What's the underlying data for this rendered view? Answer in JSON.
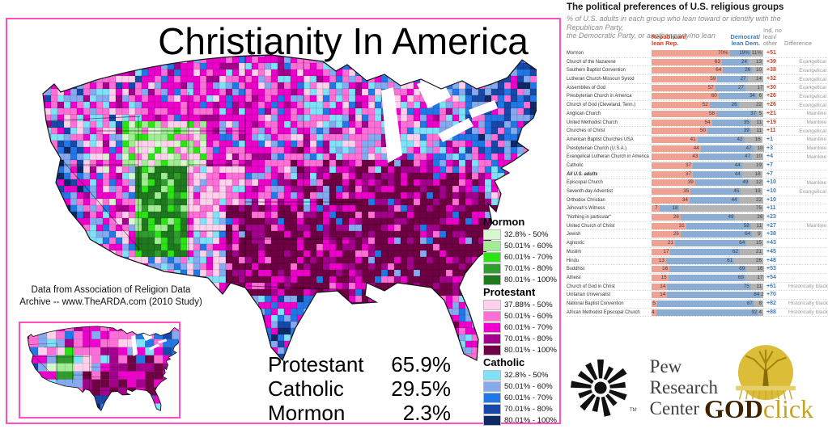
{
  "map_panel": {
    "title": "Christianity In America",
    "attribution_line1": "Data from Association of Religion Data",
    "attribution_line2": "Archive -- www.TheARDA.com (2010 Study)",
    "stats": [
      {
        "label": "Protestant",
        "value": "65.9%"
      },
      {
        "label": "Catholic",
        "value": "29.5%"
      },
      {
        "label": "Mormon",
        "value": "2.3%"
      }
    ],
    "legend": [
      {
        "group": "Mormon",
        "colors": [
          "#d7f7cf",
          "#a1ed93",
          "#2ce314",
          "#2f9e2f",
          "#1f7a1f"
        ],
        "ranges": [
          "32.8% - 50%",
          "50.01% - 60%",
          "60.01% - 70%",
          "70.01% - 80%",
          "80.01% - 100%"
        ]
      },
      {
        "group": "Protestant",
        "colors": [
          "#ffd1ec",
          "#ff6fd8",
          "#ee00cc",
          "#a4008e",
          "#6e0043"
        ],
        "ranges": [
          "37.88% - 50%",
          "50.01% - 60%",
          "60.01% - 70%",
          "70.01% - 80%",
          "80.01% - 100%"
        ]
      },
      {
        "group": "Catholic",
        "colors": [
          "#7fe2f9",
          "#85aaf0",
          "#2277e8",
          "#1747a8",
          "#0d2a66"
        ],
        "ranges": [
          "32.8% - 50%",
          "50.01% - 60%",
          "60.01% - 70%",
          "70.01% - 80%",
          "80.01% - 100%"
        ]
      }
    ],
    "border_color": "#ff4fc0"
  },
  "map_palette": {
    "ltpink": "#ffd1ec",
    "pink": "#ff6fd8",
    "magenta": "#ee00cc",
    "purple": "#a4008e",
    "maroon": "#6e0043",
    "cyan": "#7fe2f9",
    "ltblue": "#85aaf0",
    "blue": "#2277e8",
    "dkblue": "#1747a8",
    "navy": "#0d2a66",
    "palegreen": "#d7f7cf",
    "ltgreen": "#a1ed93",
    "green": "#2ce314",
    "midgreen": "#2f9e2f",
    "dkgreen": "#1f7a1f"
  },
  "chart_data": {
    "type": "bar",
    "title": "The political preferences of U.S. religious groups",
    "subtitle": "% of U.S. adults in each group who lean toward or identify with the Republican Party,\nthe Democratic Party, or another party/no lean",
    "headers": {
      "rep": "Republican/\nlean Rep.",
      "dem": "Democrat/\nlean Dem.",
      "ind": "Ind, no\nlean/\nother",
      "diff": "Difference"
    },
    "bar_colors": {
      "rep": "#f0a292",
      "dem": "#8badd3",
      "ind": "#b3b3b3"
    },
    "diff_colors": {
      "rep": "#c2452a",
      "dem": "#3b7cba"
    },
    "rows": [
      {
        "name": "Mormon",
        "rep": 70,
        "dem": 19,
        "ind": 11,
        "diff": "+51",
        "adv": "rep",
        "trad": "",
        "pct": true,
        "bold": false
      },
      {
        "name": "Church of the Nazarene",
        "rep": 63,
        "dem": 24,
        "ind": 13,
        "diff": "+39",
        "adv": "rep",
        "trad": "Evangelical",
        "pct": false,
        "bold": false
      },
      {
        "name": "Southern Baptist Convention",
        "rep": 64,
        "dem": 26,
        "ind": 10,
        "diff": "+38",
        "adv": "rep",
        "trad": "Evangelical",
        "pct": false,
        "bold": false
      },
      {
        "name": "Lutheran Church-Missouri Synod",
        "rep": 59,
        "dem": 27,
        "ind": 14,
        "diff": "+32",
        "adv": "rep",
        "trad": "Evangelical",
        "pct": false,
        "bold": false
      },
      {
        "name": "Assemblies of God",
        "rep": 57,
        "dem": 27,
        "ind": 17,
        "diff": "+30",
        "adv": "rep",
        "trad": "Evangelical",
        "pct": false,
        "bold": false
      },
      {
        "name": "Presbyterian Church in America",
        "rep": 60,
        "dem": 34,
        "ind": 6,
        "diff": "+26",
        "adv": "rep",
        "trad": "Evangelical",
        "pct": false,
        "bold": false
      },
      {
        "name": "Church of God (Cleveland, Tenn.)",
        "rep": 52,
        "dem": 26,
        "ind": 22,
        "diff": "+26",
        "adv": "rep",
        "trad": "Evangelical",
        "pct": false,
        "bold": false
      },
      {
        "name": "Anglican Church",
        "rep": 58,
        "dem": 37,
        "ind": 5,
        "diff": "+21",
        "adv": "rep",
        "trad": "Mainline",
        "pct": false,
        "bold": false
      },
      {
        "name": "United Methodist Church",
        "rep": 54,
        "dem": 35,
        "ind": 11,
        "diff": "+19",
        "adv": "rep",
        "trad": "Mainline",
        "pct": false,
        "bold": false
      },
      {
        "name": "Churches of Christ",
        "rep": 50,
        "dem": 39,
        "ind": 11,
        "diff": "+11",
        "adv": "rep",
        "trad": "Evangelical",
        "pct": false,
        "bold": false
      },
      {
        "name": "American Baptist Churches USA",
        "rep": 41,
        "dem": 42,
        "ind": 16,
        "diff": "+1",
        "adv": "dem",
        "trad": "Mainline",
        "pct": false,
        "bold": false
      },
      {
        "name": "Presbyterian Church (U.S.A.)",
        "rep": 44,
        "dem": 47,
        "ind": 10,
        "diff": "+3",
        "adv": "dem",
        "trad": "Mainline",
        "pct": false,
        "bold": false
      },
      {
        "name": "Evangelical Lutheran Church in America",
        "rep": 43,
        "dem": 47,
        "ind": 10,
        "diff": "+4",
        "adv": "dem",
        "trad": "Mainline",
        "pct": false,
        "bold": false
      },
      {
        "name": "Catholic",
        "rep": 37,
        "dem": 44,
        "ind": 19,
        "diff": "+7",
        "adv": "dem",
        "trad": "",
        "pct": false,
        "bold": false
      },
      {
        "name": "All U.S. adults",
        "rep": 37,
        "dem": 44,
        "ind": 18,
        "diff": "+7",
        "adv": "dem",
        "trad": "",
        "pct": false,
        "bold": true
      },
      {
        "name": "Episcopal Church",
        "rep": 39,
        "dem": 49,
        "ind": 12,
        "diff": "+10",
        "adv": "dem",
        "trad": "Mainline",
        "pct": false,
        "bold": false
      },
      {
        "name": "Seventh-day Adventist",
        "rep": 35,
        "dem": 45,
        "ind": 19,
        "diff": "+10",
        "adv": "dem",
        "trad": "Evangelical",
        "pct": false,
        "bold": false
      },
      {
        "name": "Orthodox Christian",
        "rep": 34,
        "dem": 44,
        "ind": 22,
        "diff": "+10",
        "adv": "dem",
        "trad": "",
        "pct": false,
        "bold": false
      },
      {
        "name": "Jehovah's Witness",
        "rep": 7,
        "dem": 18,
        "ind": 75,
        "diff": "+11",
        "adv": "dem",
        "trad": "",
        "pct": false,
        "bold": false
      },
      {
        "name": "\"Nothing in particular\"",
        "rep": 26,
        "dem": 49,
        "ind": 26,
        "diff": "+23",
        "adv": "dem",
        "trad": "",
        "pct": false,
        "bold": false
      },
      {
        "name": "United Church of Christ",
        "rep": 31,
        "dem": 58,
        "ind": 11,
        "diff": "+27",
        "adv": "dem",
        "trad": "Mainline",
        "pct": false,
        "bold": false
      },
      {
        "name": "Jewish",
        "rep": 26,
        "dem": 64,
        "ind": 9,
        "diff": "+38",
        "adv": "dem",
        "trad": "",
        "pct": false,
        "bold": false
      },
      {
        "name": "Agnostic",
        "rep": 21,
        "dem": 64,
        "ind": 15,
        "diff": "+43",
        "adv": "dem",
        "trad": "",
        "pct": false,
        "bold": false
      },
      {
        "name": "Muslim",
        "rep": 17,
        "dem": 62,
        "ind": 21,
        "diff": "+45",
        "adv": "dem",
        "trad": "",
        "pct": false,
        "bold": false
      },
      {
        "name": "Hindu",
        "rep": 13,
        "dem": 61,
        "ind": 26,
        "diff": "+48",
        "adv": "dem",
        "trad": "",
        "pct": false,
        "bold": false
      },
      {
        "name": "Buddhist",
        "rep": 16,
        "dem": 69,
        "ind": 16,
        "diff": "+53",
        "adv": "dem",
        "trad": "",
        "pct": false,
        "bold": false
      },
      {
        "name": "Atheist",
        "rep": 15,
        "dem": 69,
        "ind": 17,
        "diff": "+54",
        "adv": "dem",
        "trad": "",
        "pct": false,
        "bold": false
      },
      {
        "name": "Church of God in Christ",
        "rep": 14,
        "dem": 75,
        "ind": 11,
        "diff": "+61",
        "adv": "dem",
        "trad": "Historically black",
        "pct": false,
        "bold": false
      },
      {
        "name": "Unitarian Universalist",
        "rep": 14,
        "dem": 84,
        "ind": 2,
        "diff": "+70",
        "adv": "dem",
        "trad": "",
        "pct": false,
        "bold": false
      },
      {
        "name": "National Baptist Convention",
        "rep": 5,
        "dem": 87,
        "ind": 8,
        "diff": "+82",
        "adv": "dem",
        "trad": "Historically black",
        "pct": false,
        "bold": false
      },
      {
        "name": "African Methodist Episcopal Church",
        "rep": 4,
        "dem": 92,
        "ind": 4,
        "diff": "+88",
        "adv": "dem",
        "trad": "Historically black",
        "pct": false,
        "bold": false
      }
    ]
  },
  "logos": {
    "pew": {
      "line1": "Pew",
      "line2": "Research",
      "line3": "Center",
      "tm": "TM"
    },
    "godclick": {
      "god": "GOD",
      "click": "click"
    }
  }
}
